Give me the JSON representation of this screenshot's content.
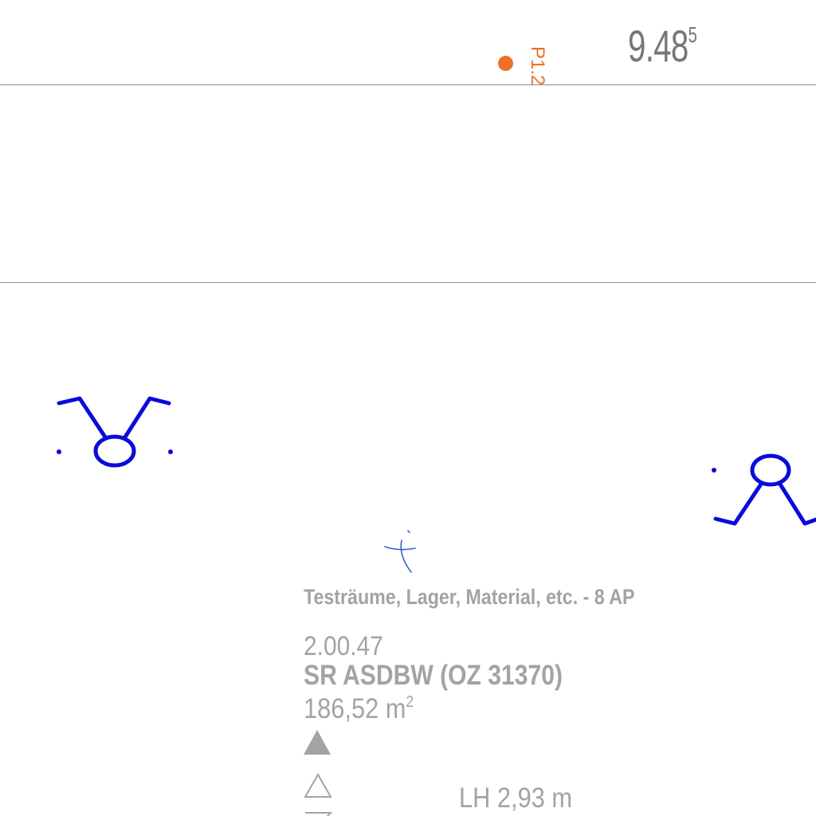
{
  "dimension": {
    "value": "9.48",
    "superscript": "5"
  },
  "point_marker": {
    "label": "P1.2",
    "color": "#f07025"
  },
  "room": {
    "usage": "Testräume, Lager, Material, etc. -  8 AP",
    "number": "2.00.47",
    "name": "SR ASDBW (OZ 31370)",
    "area_value": "186,52 m",
    "area_unit_sup": "2",
    "clear_height": "LH 2,93 m",
    "text_color": "#a3a3a3"
  },
  "symbols": {
    "fixture_color": "#0a0adc",
    "origin_mark_color": "#3a5fd0",
    "names": [
      "fixture-symbol-left",
      "fixture-symbol-right",
      "origin-mark-icon",
      "level-marker-filled",
      "level-marker-outline"
    ]
  }
}
